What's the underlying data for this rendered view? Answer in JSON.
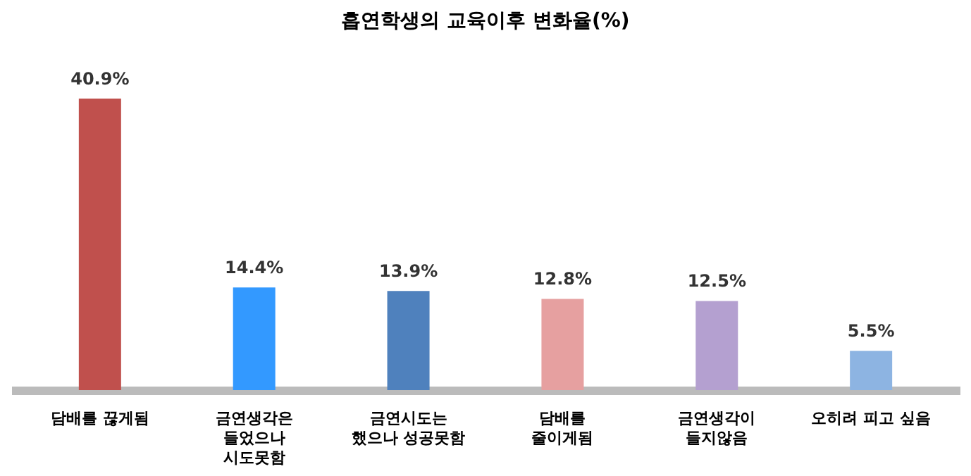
{
  "chart_data": {
    "type": "bar",
    "title": "흡연학생의 교육이후 변화율(%)",
    "categories": [
      "담배를 끊게됨",
      "금연생각은\n들었으나\n시도못함",
      "금연시도는\n했으나 성공못함",
      "담배를\n줄이게됨",
      "금연생각이\n들지않음",
      "오히려 피고 싶음"
    ],
    "values": [
      40.9,
      14.4,
      13.9,
      12.8,
      12.5,
      5.5
    ],
    "colors": [
      "#c0504d",
      "#3399ff",
      "#4f81bd",
      "#e6a0a0",
      "#b4a0d0",
      "#8db4e2"
    ],
    "value_labels": [
      "40.9%",
      "14.4%",
      "13.9%",
      "12.8%",
      "12.5%",
      "5.5%"
    ]
  }
}
